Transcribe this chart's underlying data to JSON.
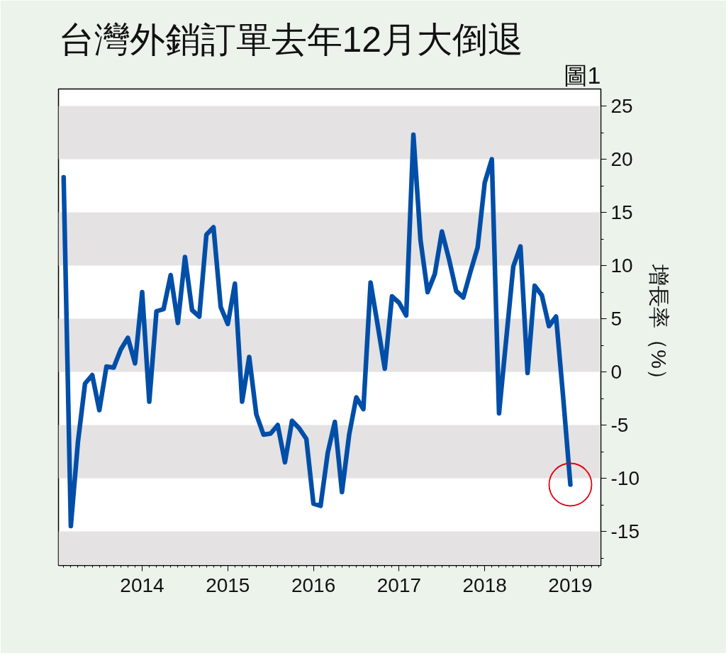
{
  "chart_data": {
    "type": "line",
    "title": "台灣外銷訂單去年12月大倒退",
    "ylabel": "增長率（%）",
    "annotations": [
      "圖1"
    ],
    "x": [
      2013.083,
      2013.167,
      2013.25,
      2013.333,
      2013.417,
      2013.5,
      2013.583,
      2013.667,
      2013.75,
      2013.833,
      2013.917,
      2014.0,
      2014.083,
      2014.167,
      2014.25,
      2014.333,
      2014.417,
      2014.5,
      2014.583,
      2014.667,
      2014.75,
      2014.833,
      2014.917,
      2015.0,
      2015.083,
      2015.167,
      2015.25,
      2015.333,
      2015.417,
      2015.5,
      2015.583,
      2015.667,
      2015.75,
      2015.833,
      2015.917,
      2016.0,
      2016.083,
      2016.167,
      2016.25,
      2016.333,
      2016.417,
      2016.5,
      2016.583,
      2016.667,
      2016.75,
      2016.833,
      2016.917,
      2017.0,
      2017.083,
      2017.167,
      2017.25,
      2017.333,
      2017.417,
      2017.5,
      2017.583,
      2017.667,
      2017.75,
      2017.833,
      2017.917,
      2018.0,
      2018.083,
      2018.167,
      2018.25,
      2018.333,
      2018.417,
      2018.5,
      2018.583,
      2018.667,
      2018.75,
      2018.833,
      2018.917,
      2019.0
    ],
    "series": [
      {
        "color": "#004ea8",
        "values": [
          18.3,
          -14.5,
          -6.6,
          -1.1,
          -0.3,
          -3.6,
          0.5,
          0.4,
          2.1,
          3.2,
          0.8,
          7.5,
          -2.8,
          5.7,
          5.9,
          9.1,
          4.6,
          10.8,
          5.8,
          5.2,
          12.9,
          13.6,
          6.1,
          4.5,
          8.3,
          -2.8,
          1.4,
          -4.0,
          -5.9,
          -5.8,
          -5.0,
          -8.5,
          -4.6,
          -5.3,
          -6.3,
          -12.4,
          -12.6,
          -7.6,
          -4.7,
          -11.3,
          -5.9,
          -2.4,
          -3.5,
          8.4,
          4.4,
          0.3,
          7.1,
          6.5,
          5.3,
          22.3,
          12.4,
          7.5,
          9.2,
          13.2,
          10.6,
          7.6,
          7.0,
          9.4,
          11.7,
          17.8,
          20.0,
          -3.9,
          3.0,
          9.9,
          11.8,
          -0.1,
          8.1,
          7.2,
          4.3,
          5.2,
          -2.5,
          -10.6
        ]
      }
    ],
    "xlim": [
      2013.023,
      2019.356
    ],
    "xticks": [
      2014,
      2015,
      2016,
      2017,
      2018,
      2019
    ],
    "ylim": [
      -18.2,
      26.6
    ],
    "yticks": [
      -15,
      -10,
      -5,
      0,
      5,
      10,
      15,
      20,
      25
    ],
    "bands": [
      {
        "axis": "y",
        "from": 20,
        "to": 25,
        "color": "#e4e2e3"
      },
      {
        "axis": "y",
        "from": 10,
        "to": 15,
        "color": "#e4e2e3"
      },
      {
        "axis": "y",
        "from": 0,
        "to": 5,
        "color": "#e4e2e3"
      },
      {
        "axis": "y",
        "from": -10,
        "to": -5,
        "color": "#e4e2e3"
      },
      {
        "axis": "y",
        "from": -18.2,
        "to": -15,
        "color": "#e4e2e3"
      }
    ],
    "grid": false,
    "marker": "none",
    "line_style": "solid"
  }
}
